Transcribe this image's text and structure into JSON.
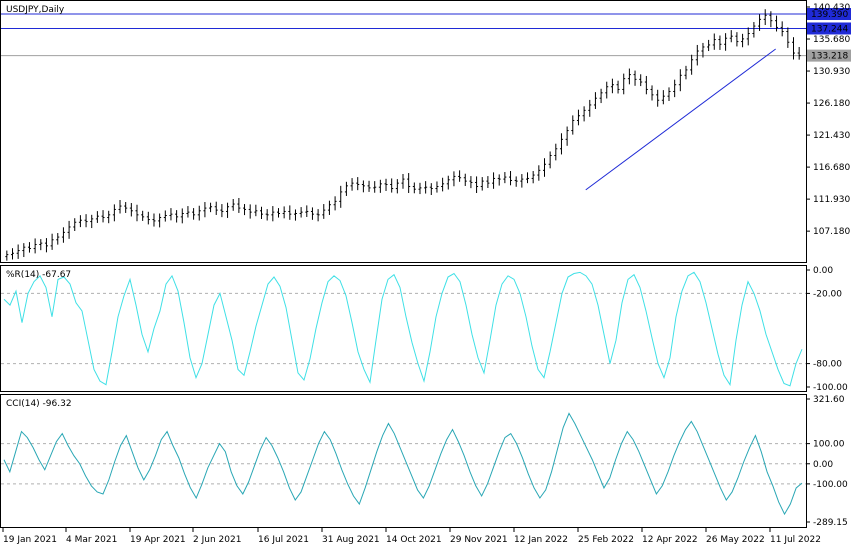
{
  "chart_data": {
    "type": "candlestick",
    "symbol_label": "USDJPY,Daily",
    "x_tick_labels": [
      "19 Jan 2021",
      "4 Mar 2021",
      "19 Apr 2021",
      "2 Jun 2021",
      "16 Jul 2021",
      "31 Aug 2021",
      "14 Oct 2021",
      "29 Nov 2021",
      "12 Jan 2022",
      "25 Feb 2022",
      "12 Apr 2022",
      "26 May 2022",
      "11 Jul 2022"
    ],
    "price": {
      "ylim": [
        102.9,
        140.43
      ],
      "y_tick_labels": [
        "140.430",
        "135.680",
        "130.930",
        "126.180",
        "121.430",
        "116.680",
        "111.930",
        "107.180"
      ],
      "horizontal_levels": [
        {
          "value": 139.39,
          "label": "139.390",
          "color": "#1f2ad6"
        },
        {
          "value": 137.244,
          "label": "137.244",
          "color": "#1f2ad6"
        },
        {
          "value": 133.218,
          "label": "133.218",
          "color": "#a0a0a0"
        }
      ],
      "trendline": {
        "from": {
          "x": 0.729,
          "y": 113.3
        },
        "to": {
          "x": 0.967,
          "y": 134.2
        },
        "color": "#1f2ad6"
      },
      "closes": [
        103.7,
        103.9,
        104.3,
        104.8,
        104.6,
        105.2,
        105.4,
        105.0,
        105.9,
        106.3,
        107.0,
        107.8,
        108.5,
        108.8,
        108.6,
        109.0,
        109.4,
        109.2,
        109.6,
        110.4,
        110.9,
        110.6,
        110.2,
        109.6,
        109.3,
        108.9,
        108.7,
        109.2,
        109.5,
        109.7,
        109.3,
        109.8,
        110.0,
        109.6,
        110.2,
        110.6,
        110.8,
        110.3,
        110.1,
        110.8,
        111.2,
        110.6,
        110.4,
        110.0,
        110.2,
        109.7,
        109.6,
        110.0,
        109.8,
        110.1,
        109.7,
        109.8,
        110.0,
        110.1,
        109.7,
        109.6,
        110.3,
        111.1,
        111.6,
        113.0,
        113.9,
        114.3,
        114.1,
        113.9,
        113.6,
        113.7,
        114.2,
        114.1,
        113.5,
        114.3,
        114.9,
        113.8,
        113.4,
        113.6,
        113.7,
        113.5,
        113.8,
        114.2,
        114.8,
        115.3,
        115.1,
        114.6,
        114.4,
        113.8,
        114.6,
        114.3,
        115.0,
        114.9,
        115.2,
        114.7,
        114.6,
        114.9,
        115.0,
        115.5,
        116.2,
        117.1,
        118.4,
        119.4,
        120.8,
        122.1,
        123.6,
        124.3,
        125.1,
        125.9,
        126.9,
        127.7,
        128.6,
        128.9,
        128.2,
        129.8,
        130.4,
        129.7,
        129.3,
        128.2,
        127.4,
        126.6,
        127.2,
        127.9,
        128.9,
        130.3,
        131.1,
        132.6,
        133.9,
        134.5,
        134.8,
        135.6,
        134.9,
        135.8,
        136.1,
        135.3,
        135.7,
        136.5,
        137.6,
        138.6,
        139.2,
        138.4,
        137.4,
        136.8,
        135.2,
        133.6,
        133.218
      ],
      "ohlc_sample_note": ""
    },
    "williams_r": {
      "title": "%R(14) -67.67",
      "ylim": [
        -100,
        0
      ],
      "levels": [
        -20,
        -80
      ],
      "y_tick_labels": [
        "0.00",
        "-20.00",
        "-80.00",
        "-100.00"
      ],
      "color": "#3fe0e6",
      "values": [
        -25,
        -30,
        -18,
        -45,
        -20,
        -10,
        -5,
        -15,
        -40,
        -8,
        -6,
        -12,
        -28,
        -35,
        -60,
        -85,
        -95,
        -98,
        -70,
        -40,
        -22,
        -8,
        -30,
        -55,
        -70,
        -50,
        -35,
        -12,
        -5,
        -18,
        -45,
        -75,
        -92,
        -80,
        -55,
        -30,
        -20,
        -40,
        -60,
        -85,
        -90,
        -70,
        -48,
        -30,
        -12,
        -6,
        -14,
        -32,
        -60,
        -88,
        -94,
        -76,
        -50,
        -28,
        -10,
        -5,
        -9,
        -22,
        -45,
        -70,
        -85,
        -96,
        -60,
        -25,
        -8,
        -4,
        -15,
        -40,
        -62,
        -80,
        -95,
        -70,
        -40,
        -20,
        -6,
        -3,
        -10,
        -30,
        -55,
        -75,
        -88,
        -60,
        -30,
        -12,
        -5,
        -8,
        -20,
        -40,
        -65,
        -85,
        -92,
        -70,
        -45,
        -20,
        -6,
        -3,
        -2,
        -5,
        -12,
        -30,
        -55,
        -80,
        -60,
        -28,
        -8,
        -4,
        -15,
        -35,
        -58,
        -80,
        -92,
        -75,
        -40,
        -18,
        -5,
        -2,
        -10,
        -28,
        -50,
        -72,
        -90,
        -98,
        -60,
        -30,
        -10,
        -20,
        -35,
        -55,
        -70,
        -85,
        -97,
        -99,
        -80,
        -67.67
      ]
    },
    "cci": {
      "title": "CCI(14) -96.32",
      "ylim": [
        -289.15,
        321.6
      ],
      "levels": [
        100,
        0,
        -100
      ],
      "y_tick_labels": [
        "321.60",
        "100.00",
        "0.00",
        "-100.00",
        "-289.15"
      ],
      "color": "#2aa7b5",
      "values": [
        20,
        -40,
        60,
        160,
        130,
        80,
        20,
        -30,
        40,
        110,
        150,
        90,
        40,
        0,
        -60,
        -110,
        -140,
        -150,
        -80,
        10,
        90,
        140,
        60,
        -20,
        -80,
        -30,
        40,
        120,
        160,
        90,
        30,
        -50,
        -120,
        -170,
        -100,
        -20,
        40,
        100,
        60,
        -40,
        -110,
        -150,
        -90,
        -10,
        70,
        130,
        90,
        30,
        -40,
        -120,
        -180,
        -140,
        -60,
        20,
        100,
        160,
        120,
        50,
        -30,
        -100,
        -160,
        -200,
        -120,
        -30,
        60,
        140,
        200,
        150,
        80,
        10,
        -60,
        -130,
        -170,
        -110,
        -30,
        50,
        120,
        170,
        110,
        40,
        -40,
        -110,
        -160,
        -100,
        -20,
        60,
        130,
        150,
        100,
        30,
        -50,
        -120,
        -170,
        -130,
        -40,
        70,
        180,
        250,
        200,
        140,
        80,
        20,
        -50,
        -120,
        -70,
        20,
        100,
        160,
        120,
        60,
        -10,
        -80,
        -150,
        -110,
        -40,
        40,
        110,
        170,
        210,
        160,
        90,
        20,
        -50,
        -120,
        -180,
        -140,
        -70,
        10,
        80,
        140,
        60,
        -40,
        -110,
        -190,
        -250,
        -200,
        -120,
        -96.32
      ]
    }
  }
}
